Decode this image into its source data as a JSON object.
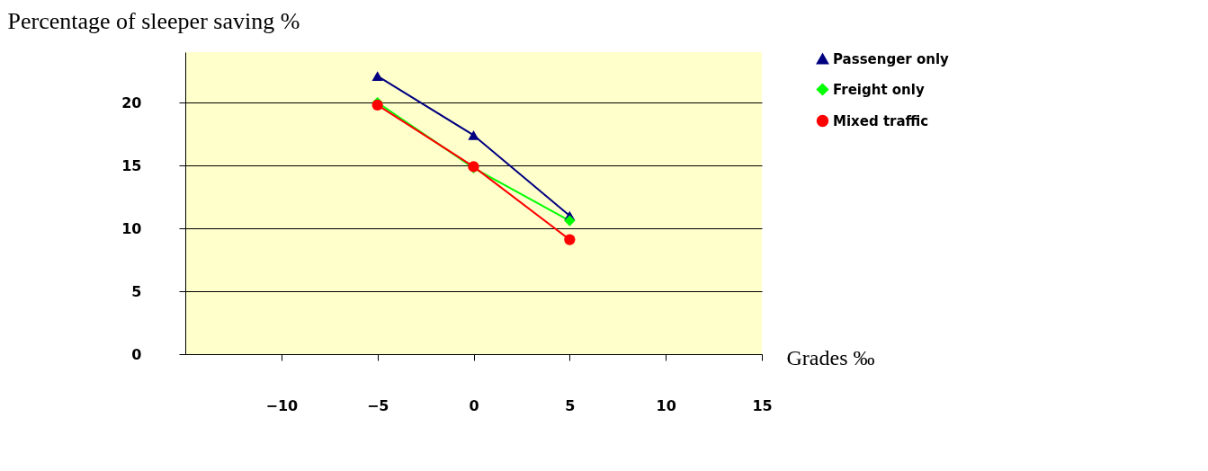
{
  "chart_data": {
    "type": "line",
    "xlabel": "Grades ‰",
    "ylabel": "Percentage of sleeper saving %",
    "x": [
      -5,
      0,
      5
    ],
    "series": [
      {
        "name": "Passenger only",
        "color": "#000080",
        "marker": "triangle",
        "values": [
          22.1,
          17.4,
          11.0
        ]
      },
      {
        "name": "Freight only",
        "color": "#00ff00",
        "marker": "diamond",
        "values": [
          20.0,
          14.8,
          10.6
        ]
      },
      {
        "name": "Mixed traffic",
        "color": "#ff0000",
        "marker": "circle",
        "values": [
          19.8,
          14.9,
          9.1
        ]
      }
    ],
    "xlim": [
      -15,
      15
    ],
    "xticks": [
      -10,
      -5,
      0,
      5,
      10,
      15
    ],
    "ylim": [
      0,
      24
    ],
    "yticks": [
      0,
      5,
      10,
      15,
      20
    ],
    "grid": "y",
    "legend": "right",
    "line_style": "solid"
  }
}
